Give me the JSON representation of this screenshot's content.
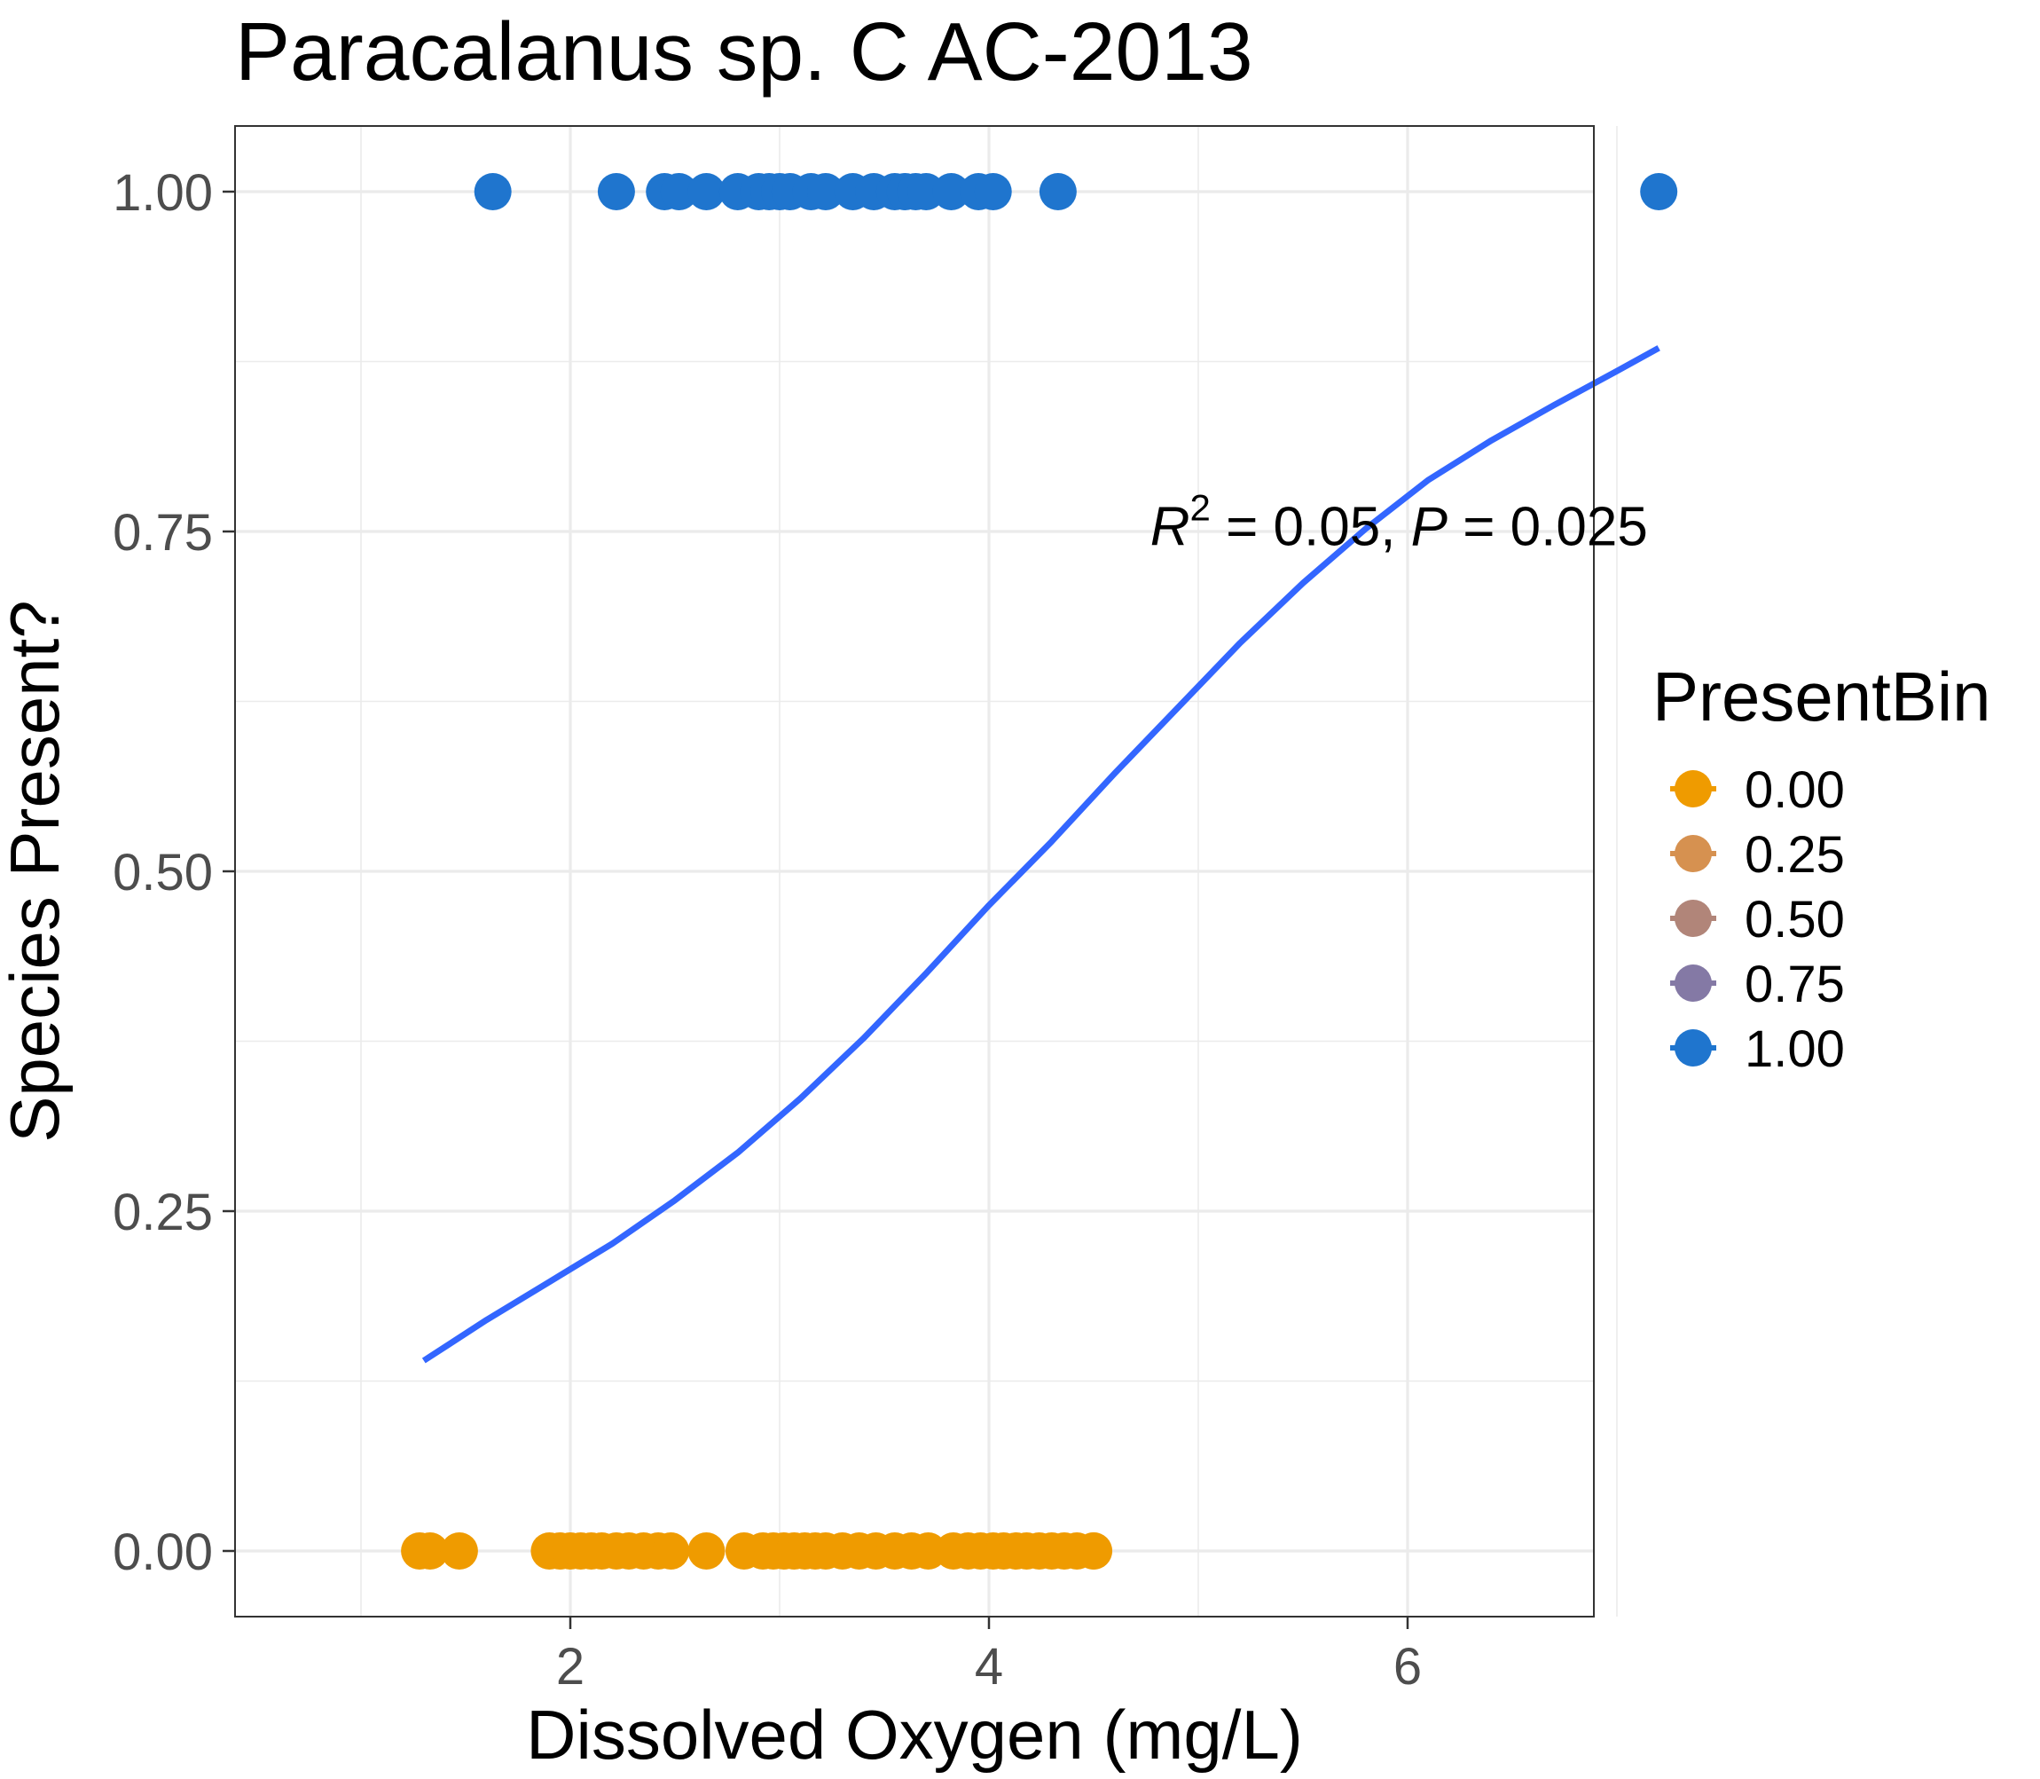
{
  "chart_data": {
    "type": "scatter",
    "title": "Paracalanus sp. C AC-2013",
    "xlabel": "Dissolved Oxygen (mg/L)",
    "ylabel": "Species Present?",
    "xlim": [
      1.0,
      7.5
    ],
    "ylim": [
      -0.05,
      1.05
    ],
    "x_ticks": [
      2,
      4,
      6
    ],
    "x_tick_labels": [
      "2",
      "4",
      "6"
    ],
    "y_ticks": [
      0,
      0.25,
      0.5,
      0.75,
      1.0
    ],
    "y_tick_labels": [
      "0.00",
      "0.25",
      "0.50",
      "0.75",
      "1.00"
    ],
    "grid": true,
    "legend": {
      "title": "PresentBin",
      "position": "right",
      "entries": [
        {
          "label": "0.00",
          "color": "#ef9b00"
        },
        {
          "label": "0.25",
          "color": "#d69150"
        },
        {
          "label": "0.50",
          "color": "#b18579"
        },
        {
          "label": "0.75",
          "color": "#8479a5"
        },
        {
          "label": "1.00",
          "color": "#1f75ce"
        }
      ]
    },
    "series": [
      {
        "name": "0.00",
        "color": "#ef9b00",
        "y": 0,
        "x": [
          1.28,
          1.33,
          1.47,
          1.9,
          1.95,
          2.0,
          2.05,
          2.1,
          2.15,
          2.22,
          2.28,
          2.35,
          2.42,
          2.48,
          2.65,
          2.83,
          2.92,
          2.97,
          3.02,
          3.07,
          3.12,
          3.17,
          3.22,
          3.3,
          3.38,
          3.46,
          3.55,
          3.63,
          3.71,
          3.83,
          3.9,
          3.96,
          4.02,
          4.07,
          4.13,
          4.18,
          4.24,
          4.3,
          4.36,
          4.42,
          4.5,
          4.5
        ]
      },
      {
        "name": "1.00",
        "color": "#1f75ce",
        "y": 1,
        "x": [
          1.63,
          2.22,
          2.45,
          2.52,
          2.65,
          2.8,
          2.9,
          2.95,
          3.0,
          3.05,
          3.15,
          3.22,
          3.35,
          3.45,
          3.55,
          3.6,
          3.65,
          3.7,
          3.82,
          3.95,
          4.02,
          4.33,
          7.2
        ]
      }
    ],
    "fit": {
      "type": "logistic",
      "color": "#3366ff",
      "x": [
        1.3,
        1.6,
        1.9,
        2.2,
        2.5,
        2.8,
        3.1,
        3.4,
        3.7,
        4.0,
        4.3,
        4.6,
        4.9,
        5.2,
        5.5,
        5.8,
        6.1,
        6.4,
        6.7,
        7.0,
        7.2
      ],
      "y": [
        0.14,
        0.17,
        0.198,
        0.226,
        0.258,
        0.293,
        0.333,
        0.377,
        0.425,
        0.475,
        0.522,
        0.572,
        0.62,
        0.668,
        0.712,
        0.752,
        0.788,
        0.817,
        0.843,
        0.868,
        0.885
      ]
    },
    "annotation": {
      "r_label": "R",
      "r_sup": "2",
      "r_value": " = 0.05, ",
      "p_label": "P",
      "p_value": " = 0.025",
      "x": 4.77,
      "y": 0.74
    }
  }
}
